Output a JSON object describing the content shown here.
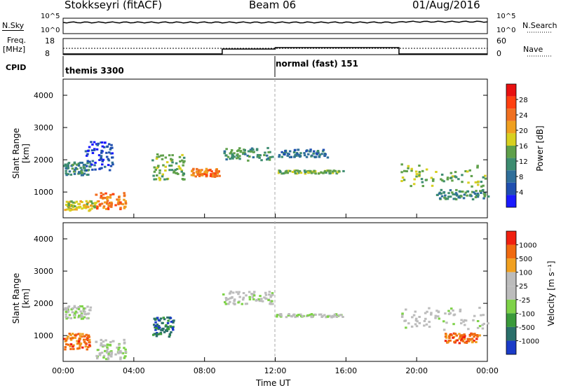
{
  "header": {
    "station": "Stokkseyri (fitACF)",
    "beam": "Beam 06",
    "date": "01/Aug/2016"
  },
  "noise_panel": {
    "left_label": "N.Sky",
    "right_label": "N.Search",
    "left_ticks": [
      "10^5",
      "10^0"
    ],
    "right_ticks": [
      "10^5",
      "10^0"
    ]
  },
  "freq_panel": {
    "left_label_line1": "Freq.",
    "left_label_line2": "[MHz]",
    "right_label": "Nave",
    "left_ticks": [
      "18",
      "8"
    ],
    "right_ticks": [
      "60",
      "0"
    ]
  },
  "cpid": {
    "label": "CPID",
    "segments": [
      {
        "name": "themis 3300",
        "start_hour": 0
      },
      {
        "name": "normal (fast) 151",
        "start_hour": 12
      }
    ]
  },
  "colors": {
    "power_scale": [
      "#1a1aff",
      "#1f4fb0",
      "#2f6f9a",
      "#3d8c70",
      "#5fa04a",
      "#d8d020",
      "#f0a020",
      "#f07020",
      "#ff4010",
      "#e81010"
    ],
    "velocity_scale": [
      "#1a3bc8",
      "#2a6f6a",
      "#3a9a3a",
      "#7ed248",
      "#bcbcbc",
      "#bcbcbc",
      "#f0a020",
      "#f06a10",
      "#f02010"
    ],
    "ground_scatter": "#c0c0c0"
  },
  "chart_data": [
    {
      "type": "heatmap",
      "name": "power",
      "ylabel": "Slant Range [km]",
      "yticks": [
        "1000",
        "2000",
        "3000",
        "4000"
      ],
      "ylim": [
        200,
        4500
      ],
      "xlim": [
        0,
        24
      ],
      "colorbar_label": "Power [dB]",
      "colorbar_ticks": [
        "4",
        "8",
        "12",
        "16",
        "20",
        "24",
        "28"
      ],
      "regions": [
        {
          "t0": 0.0,
          "t1": 1.5,
          "r0": 1550,
          "r1": 1950,
          "level": 3
        },
        {
          "t0": 1.2,
          "t1": 2.8,
          "r0": 1700,
          "r1": 2600,
          "level": 1
        },
        {
          "t0": 1.8,
          "t1": 3.5,
          "r0": 500,
          "r1": 1000,
          "level": 7
        },
        {
          "t0": 0.0,
          "t1": 1.8,
          "r0": 450,
          "r1": 750,
          "level": 5
        },
        {
          "t0": 5.0,
          "t1": 6.8,
          "r0": 1400,
          "r1": 2200,
          "level": 4
        },
        {
          "t0": 7.2,
          "t1": 8.8,
          "r0": 1500,
          "r1": 1750,
          "level": 7
        },
        {
          "t0": 9.0,
          "t1": 11.8,
          "r0": 2000,
          "r1": 2400,
          "level": 3
        },
        {
          "t0": 12.0,
          "t1": 15.8,
          "r0": 1600,
          "r1": 1700,
          "level": 4
        },
        {
          "t0": 12.0,
          "t1": 15.0,
          "r0": 2100,
          "r1": 2350,
          "level": 2
        },
        {
          "t0": 19.0,
          "t1": 24.0,
          "r0": 1200,
          "r1": 1900,
          "level": 4
        },
        {
          "t0": 21.0,
          "t1": 24.0,
          "r0": 800,
          "r1": 1100,
          "level": 3
        }
      ]
    },
    {
      "type": "heatmap",
      "name": "velocity",
      "ylabel": "Slant Range [km]",
      "yticks": [
        "1000",
        "2000",
        "3000",
        "4000"
      ],
      "ylim": [
        200,
        4500
      ],
      "xlim": [
        0,
        24
      ],
      "xticks": [
        "00:00",
        "04:00",
        "08:00",
        "12:00",
        "16:00",
        "20:00",
        "00:00"
      ],
      "xlabel": "Time UT",
      "colorbar_label": "Velocity [m s⁻¹]",
      "colorbar_ticks": [
        "1000",
        "500",
        "100",
        "25",
        "-25",
        "-100",
        "-500",
        "-1000"
      ],
      "regions": [
        {
          "t0": 0.0,
          "t1": 1.5,
          "r0": 1550,
          "r1": 1950,
          "level": 4
        },
        {
          "t0": 0.0,
          "t1": 1.5,
          "r0": 600,
          "r1": 1100,
          "level": 7
        },
        {
          "t0": 1.8,
          "t1": 3.5,
          "r0": 300,
          "r1": 900,
          "level": 4
        },
        {
          "t0": 5.0,
          "t1": 6.2,
          "r0": 1000,
          "r1": 1600,
          "level": 1
        },
        {
          "t0": 9.0,
          "t1": 11.8,
          "r0": 2000,
          "r1": 2400,
          "level": 4
        },
        {
          "t0": 12.0,
          "t1": 15.8,
          "r0": 1600,
          "r1": 1700,
          "level": 4
        },
        {
          "t0": 19.0,
          "t1": 24.0,
          "r0": 1200,
          "r1": 1900,
          "level": 4
        },
        {
          "t0": 21.5,
          "t1": 23.5,
          "r0": 800,
          "r1": 1100,
          "level": 7
        }
      ]
    }
  ]
}
